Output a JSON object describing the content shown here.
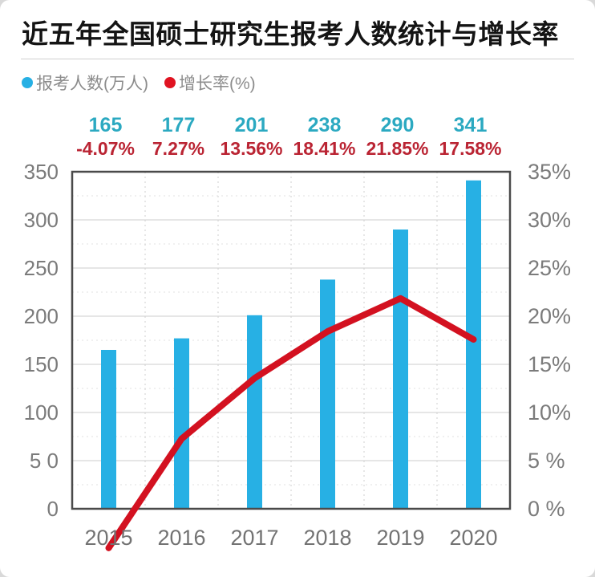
{
  "title": "近五年全国硕士研究生报考人数统计与增长率",
  "legend": [
    {
      "label": "报考人数(万人)",
      "color": "#27b0e4"
    },
    {
      "label": "增长率(%)",
      "color": "#e01321"
    }
  ],
  "chart_data": {
    "type": "bar+line",
    "title": "近五年全国硕士研究生报考人数统计与增长率",
    "categories": [
      "2015",
      "2016",
      "2017",
      "2018",
      "2019",
      "2020"
    ],
    "series": [
      {
        "name": "报考人数(万人)",
        "type": "bar",
        "axis": "left",
        "color": "#27b0e4",
        "values": [
          165,
          177,
          201,
          238,
          290,
          341
        ],
        "data_labels": [
          "165",
          "177",
          "201",
          "238",
          "290",
          "341"
        ],
        "label_color": "#2ba9c1"
      },
      {
        "name": "增长率(%)",
        "type": "line",
        "axis": "right",
        "color": "#d31120",
        "values": [
          -4.07,
          7.27,
          13.56,
          18.41,
          21.85,
          17.58
        ],
        "data_labels": [
          "-4.07%",
          "7.27%",
          "13.56%",
          "18.41%",
          "21.85%",
          "17.58%"
        ],
        "label_color": "#ba2433"
      }
    ],
    "left_axis": {
      "min": 0,
      "max": 350,
      "tick_values": [
        0,
        50,
        100,
        150,
        200,
        250,
        300,
        350
      ],
      "tick_labels": [
        "0",
        "5 0",
        "100",
        "150",
        "200",
        "250",
        "300",
        "350"
      ]
    },
    "right_axis": {
      "min": 0,
      "max": 35,
      "tick_values": [
        0,
        5,
        10,
        15,
        20,
        25,
        30,
        35
      ],
      "tick_labels": [
        "0 %",
        "5 %",
        "10%",
        "15%",
        "20%",
        "25%",
        "30%",
        "35%"
      ]
    },
    "grid": {
      "horizontal_minor_step": 25,
      "vertical_category_boundaries": true
    },
    "legend_position": "top-left",
    "colors": {
      "plot_border": "#4a4a4a",
      "grid_major": "#d8d8d8",
      "grid_minor": "#e2e2e2",
      "grid_vertical": "#cfcfcf",
      "axis_tick_text": "#7b7b7b",
      "x_label_text": "#737373"
    }
  }
}
